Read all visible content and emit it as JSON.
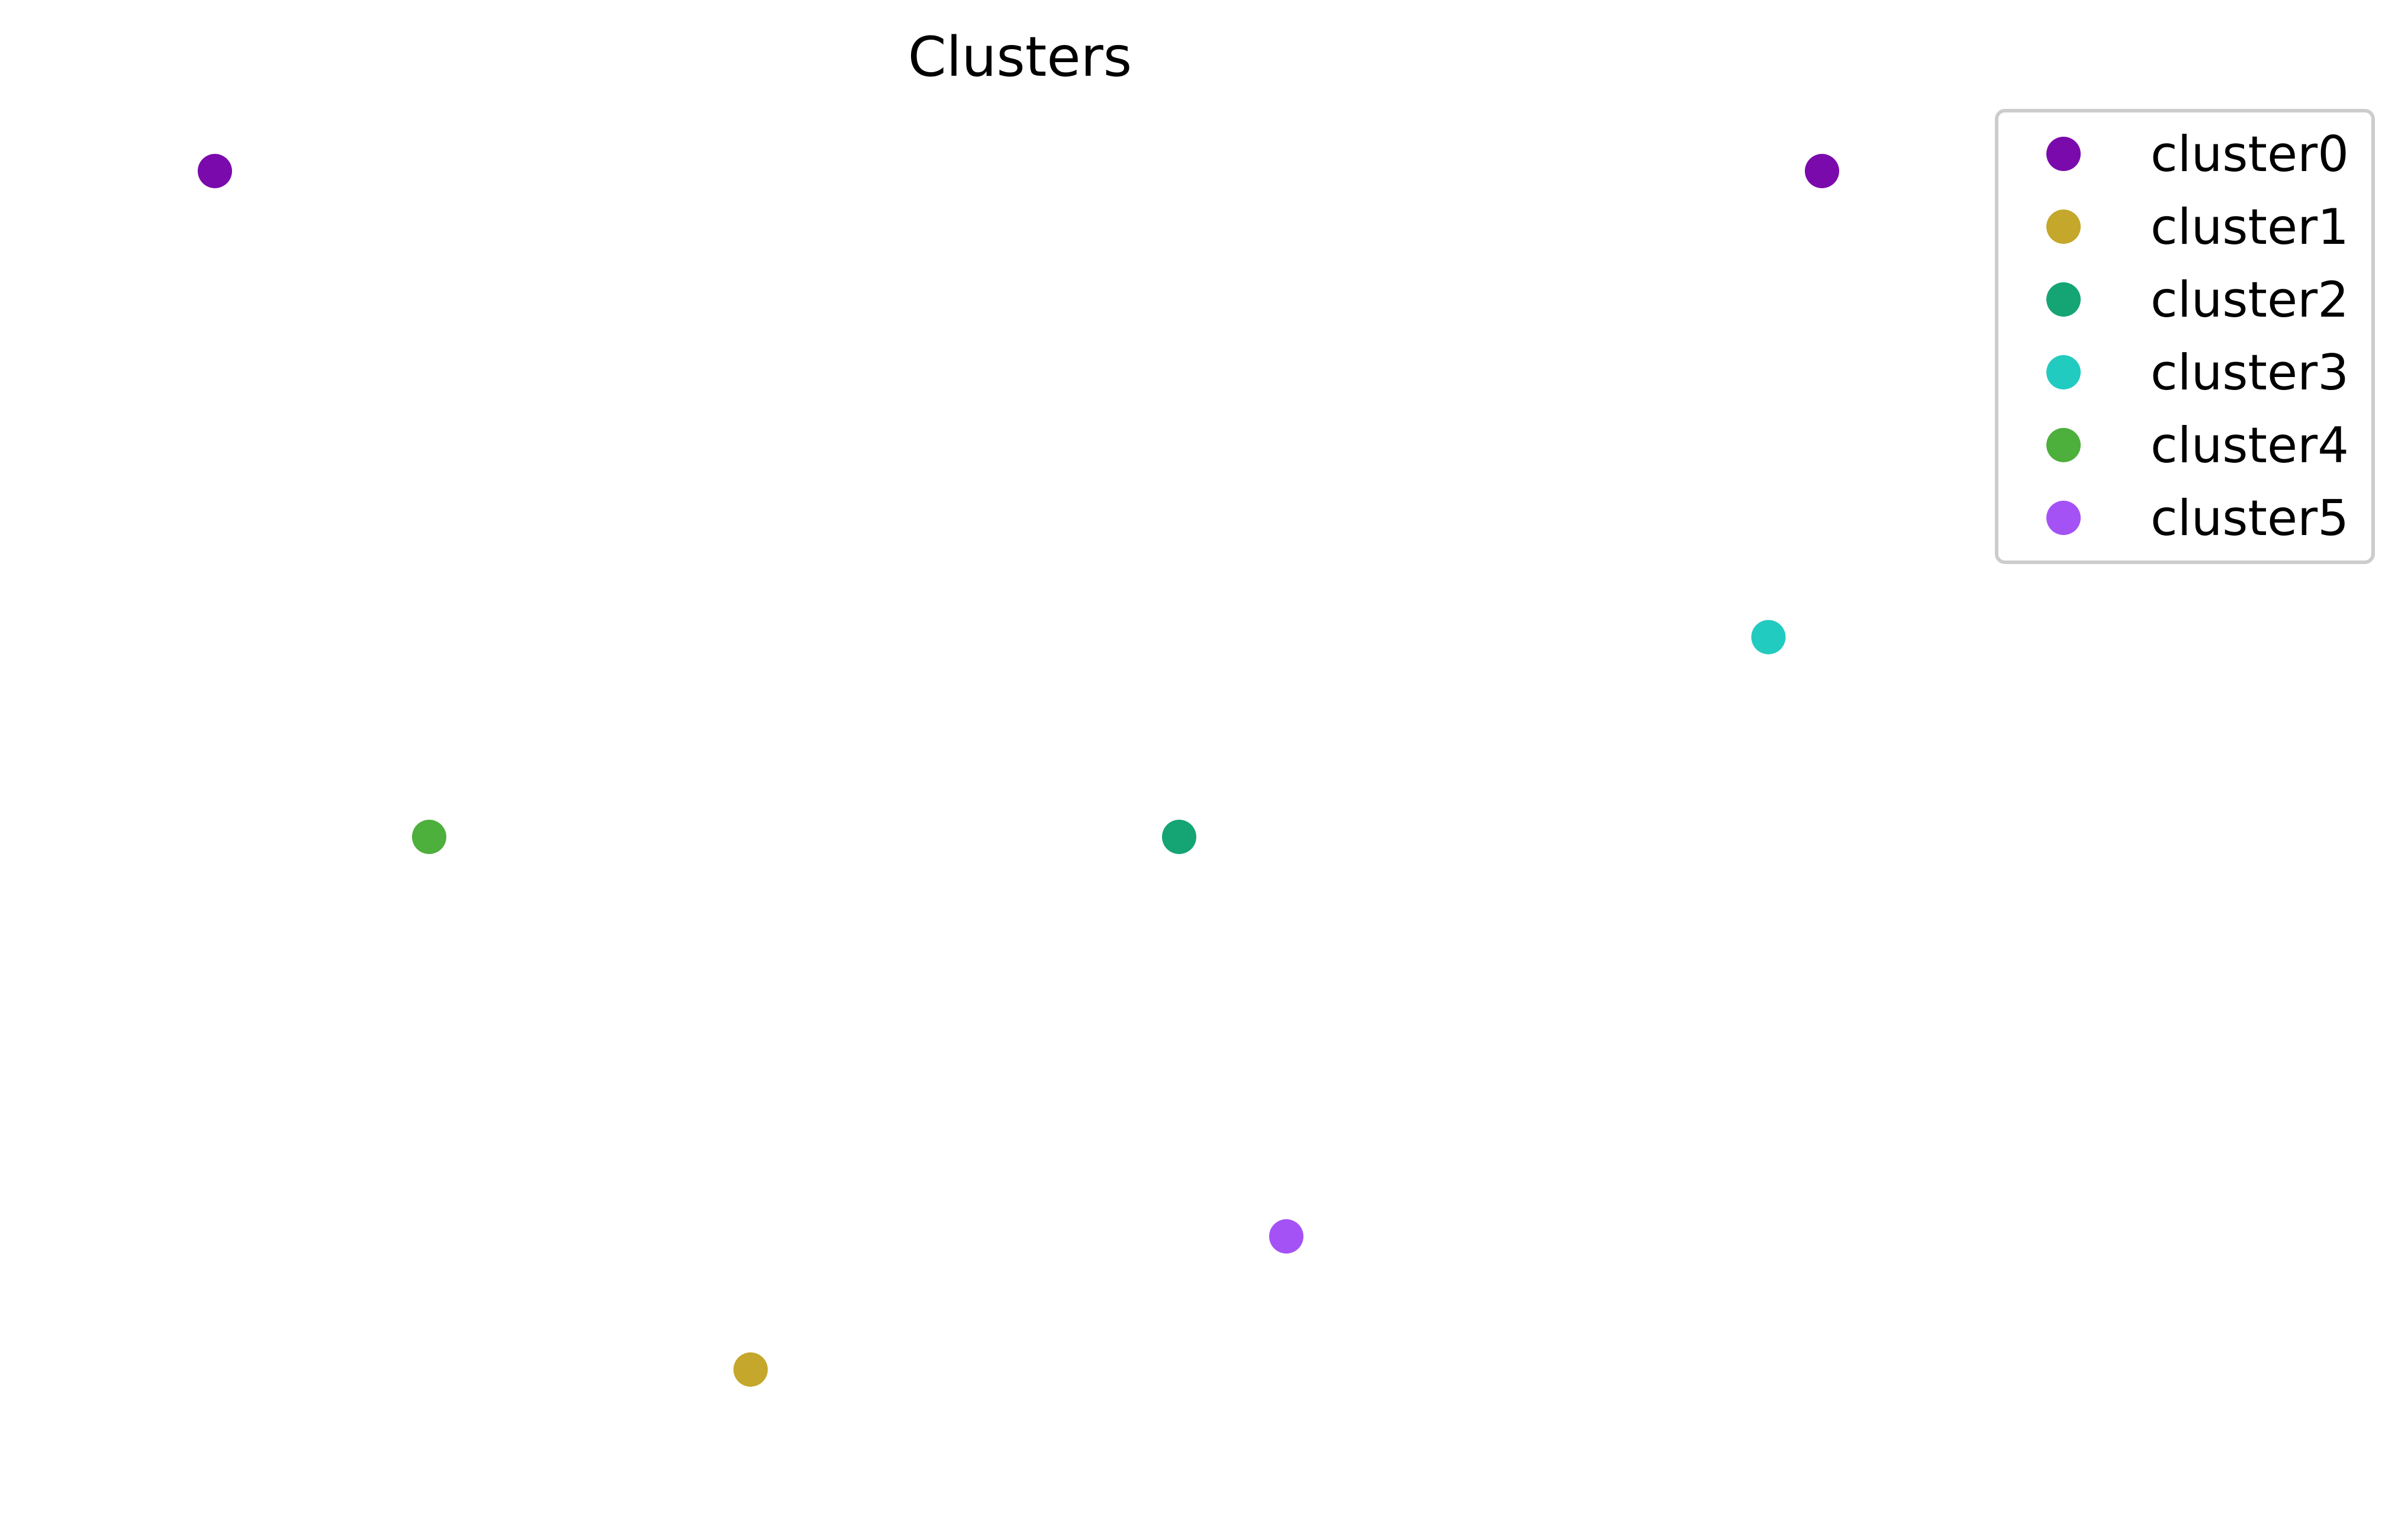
{
  "chart_data": {
    "type": "scatter",
    "title": "Clusters",
    "xlabel": "",
    "ylabel": "",
    "axes_visible": false,
    "grid": false,
    "legend_placement": "top-right",
    "series": [
      {
        "name": "cluster0",
        "color": "#7b0aad",
        "points": [
          {
            "x": 0.0,
            "y": 0.0
          },
          {
            "x": 6.0,
            "y": 0.0
          }
        ]
      },
      {
        "name": "cluster1",
        "color": "#c4a72b",
        "points": [
          {
            "x": 2.0,
            "y": 4.5
          }
        ]
      },
      {
        "name": "cluster2",
        "color": "#15a574",
        "points": [
          {
            "x": 3.6,
            "y": 2.5
          }
        ]
      },
      {
        "name": "cluster3",
        "color": "#22cbbf",
        "points": [
          {
            "x": 5.8,
            "y": 1.75
          }
        ]
      },
      {
        "name": "cluster4",
        "color": "#4daf3c",
        "points": [
          {
            "x": 0.8,
            "y": 2.5
          }
        ]
      },
      {
        "name": "cluster5",
        "color": "#a452f5",
        "points": [
          {
            "x": 4.0,
            "y": 4.0
          }
        ]
      }
    ]
  }
}
